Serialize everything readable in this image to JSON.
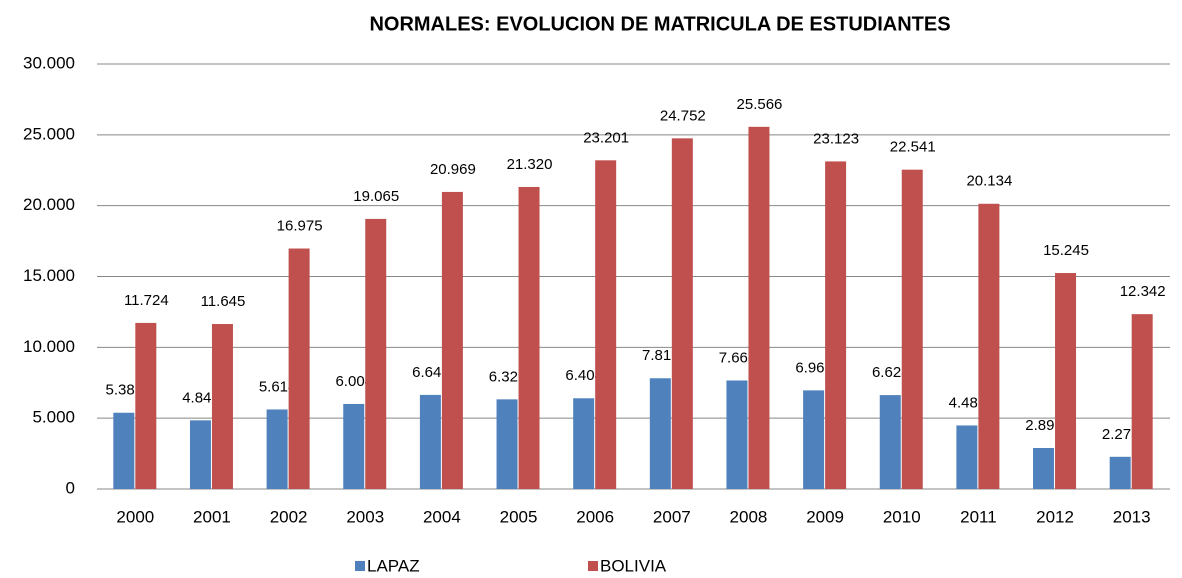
{
  "chart_data": {
    "type": "bar",
    "title": "NORMALES: EVOLUCION DE MATRICULA DE ESTUDIANTES",
    "categories": [
      "2000",
      "2001",
      "2002",
      "2003",
      "2004",
      "2005",
      "2006",
      "2007",
      "2008",
      "2009",
      "2010",
      "2011",
      "2012",
      "2013"
    ],
    "series": [
      {
        "name": "LAPAZ",
        "color": "#4f81bd",
        "values": [
          5383,
          4846,
          5614,
          6004,
          6642,
          6328,
          6404,
          7817,
          7660,
          6961,
          6628,
          4485,
          2895,
          2273
        ],
        "value_labels": [
          "5.383",
          "4.846",
          "5.614",
          "6.004",
          "6.642",
          "6.328",
          "6.404",
          "7.817",
          "7.660",
          "6.961",
          "6.628",
          "4.485",
          "2.895",
          "2.273"
        ]
      },
      {
        "name": "BOLIVIA",
        "color": "#c0504d",
        "values": [
          11724,
          11645,
          16975,
          19065,
          20969,
          21320,
          23201,
          24752,
          25566,
          23123,
          22541,
          20134,
          15245,
          12342
        ],
        "value_labels": [
          "11.724",
          "11.645",
          "16.975",
          "19.065",
          "20.969",
          "21.320",
          "23.201",
          "24.752",
          "25.566",
          "23.123",
          "22.541",
          "20.134",
          "15.245",
          "12.342"
        ]
      }
    ],
    "ylim": [
      0,
      30000
    ],
    "yticks": [
      0,
      {
        "value": 5000,
        "label": "5.000"
      },
      {
        "value": 10000,
        "label": "10.000"
      },
      {
        "value": 15000,
        "label": "15.000"
      },
      {
        "value": 20000,
        "label": "20.000"
      },
      {
        "value": 25000,
        "label": "25.000"
      },
      {
        "value": 30000,
        "label": "30.000"
      }
    ],
    "grid": true,
    "legend": "bottom"
  }
}
